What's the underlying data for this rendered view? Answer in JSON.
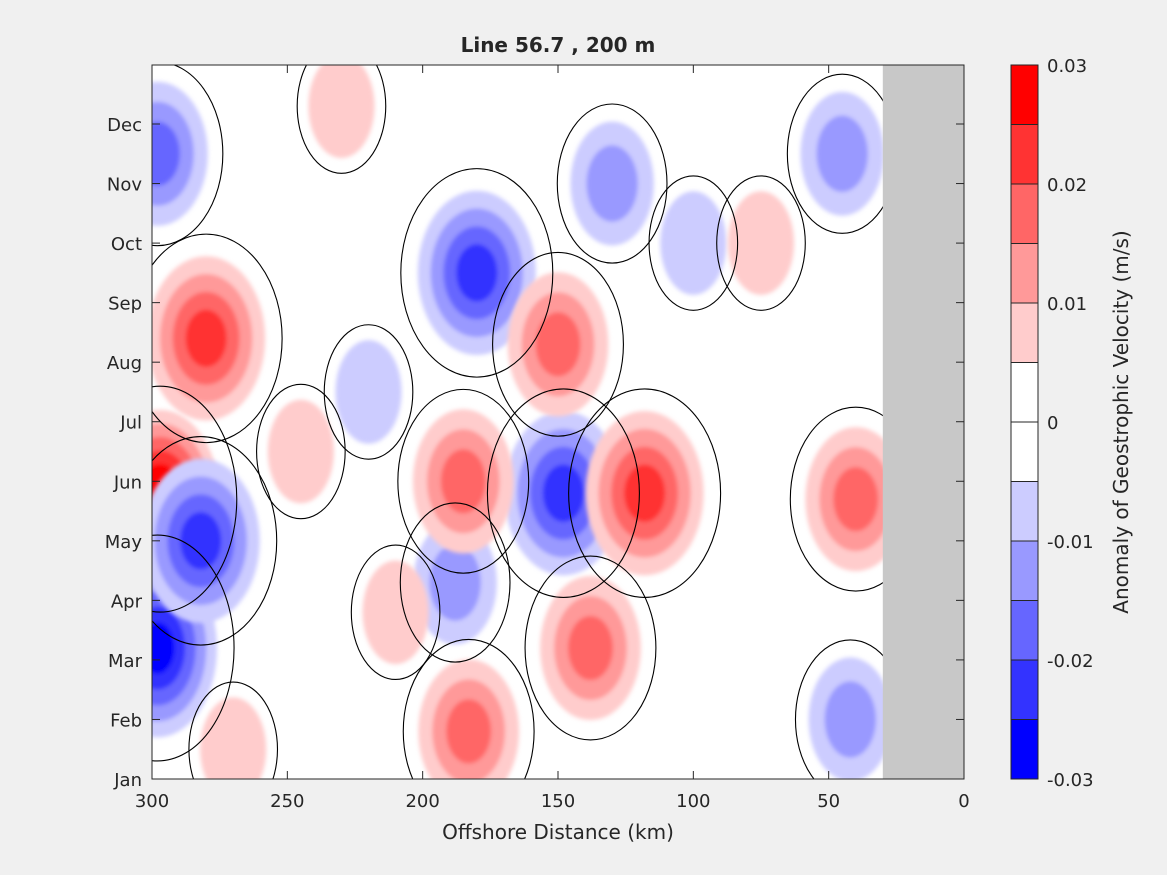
{
  "chart_data": {
    "type": "heatmap",
    "title": "Line 56.7 , 200 m",
    "xlabel": "Offshore Distance (km)",
    "ylabel": "",
    "xlim": [
      300,
      0
    ],
    "x_reversed": true,
    "x_ticks": [
      300,
      250,
      200,
      150,
      100,
      50,
      0
    ],
    "y_ticks": [
      "Jan",
      "Feb",
      "Mar",
      "Apr",
      "May",
      "Jun",
      "Jul",
      "Aug",
      "Sep",
      "Oct",
      "Nov",
      "Dec"
    ],
    "colorbar": {
      "label": "Anomaly of Geostrophic Velocity (m/s)",
      "levels": [
        -0.03,
        -0.025,
        -0.02,
        -0.015,
        -0.01,
        -0.005,
        0,
        0.005,
        0.01,
        0.015,
        0.02,
        0.025,
        0.03
      ],
      "tick_values": [
        -0.03,
        -0.02,
        -0.01,
        0,
        0.01,
        0.02,
        0.03
      ],
      "tick_labels": [
        "-0.03",
        "-0.02",
        "-0.01",
        "0",
        "0.01",
        "0.02",
        "0.03"
      ],
      "colors": [
        "#0000ff",
        "#3333ff",
        "#6666ff",
        "#9999ff",
        "#ccccff",
        "#ffffff",
        "#ffffff",
        "#ffcccc",
        "#ff9999",
        "#ff6666",
        "#ff3333",
        "#ff0000"
      ]
    },
    "no_data_region": {
      "x_range_km": [
        30,
        0
      ],
      "color": "#c8c8c8"
    },
    "zero_contour_color": "#000000",
    "features": [
      {
        "sign": "positive",
        "x_km": 297,
        "month": 5.7,
        "peak": 0.03
      },
      {
        "sign": "positive",
        "x_km": 280,
        "month": 8.4,
        "peak": 0.02
      },
      {
        "sign": "negative",
        "x_km": 298,
        "month": 11.5,
        "peak": -0.015
      },
      {
        "sign": "negative",
        "x_km": 298,
        "month": 3.2,
        "peak": -0.025
      },
      {
        "sign": "negative",
        "x_km": 282,
        "month": 5.0,
        "peak": -0.02
      },
      {
        "sign": "negative",
        "x_km": 180,
        "month": 9.5,
        "peak": -0.02
      },
      {
        "sign": "negative",
        "x_km": 148,
        "month": 5.8,
        "peak": -0.02
      },
      {
        "sign": "negative",
        "x_km": 188,
        "month": 4.3,
        "peak": -0.01
      },
      {
        "sign": "negative",
        "x_km": 130,
        "month": 11.0,
        "peak": -0.01
      },
      {
        "sign": "negative",
        "x_km": 100,
        "month": 10.0,
        "peak": -0.005
      },
      {
        "sign": "negative",
        "x_km": 45,
        "month": 11.5,
        "peak": -0.01
      },
      {
        "sign": "negative",
        "x_km": 42,
        "month": 2.0,
        "peak": -0.01
      },
      {
        "sign": "negative",
        "x_km": 220,
        "month": 7.5,
        "peak": -0.005
      },
      {
        "sign": "positive",
        "x_km": 185,
        "month": 6.0,
        "peak": 0.015
      },
      {
        "sign": "positive",
        "x_km": 118,
        "month": 5.8,
        "peak": 0.02
      },
      {
        "sign": "positive",
        "x_km": 150,
        "month": 8.3,
        "peak": 0.015
      },
      {
        "sign": "positive",
        "x_km": 40,
        "month": 5.7,
        "peak": 0.015
      },
      {
        "sign": "positive",
        "x_km": 183,
        "month": 1.8,
        "peak": 0.015
      },
      {
        "sign": "positive",
        "x_km": 138,
        "month": 3.2,
        "peak": 0.015
      },
      {
        "sign": "positive",
        "x_km": 210,
        "month": 3.8,
        "peak": 0.005
      },
      {
        "sign": "positive",
        "x_km": 270,
        "month": 1.5,
        "peak": 0.005
      },
      {
        "sign": "positive",
        "x_km": 245,
        "month": 6.5,
        "peak": 0.005
      },
      {
        "sign": "positive",
        "x_km": 75,
        "month": 10.0,
        "peak": 0.005
      },
      {
        "sign": "positive",
        "x_km": 230,
        "month": 12.3,
        "peak": 0.005
      }
    ]
  }
}
